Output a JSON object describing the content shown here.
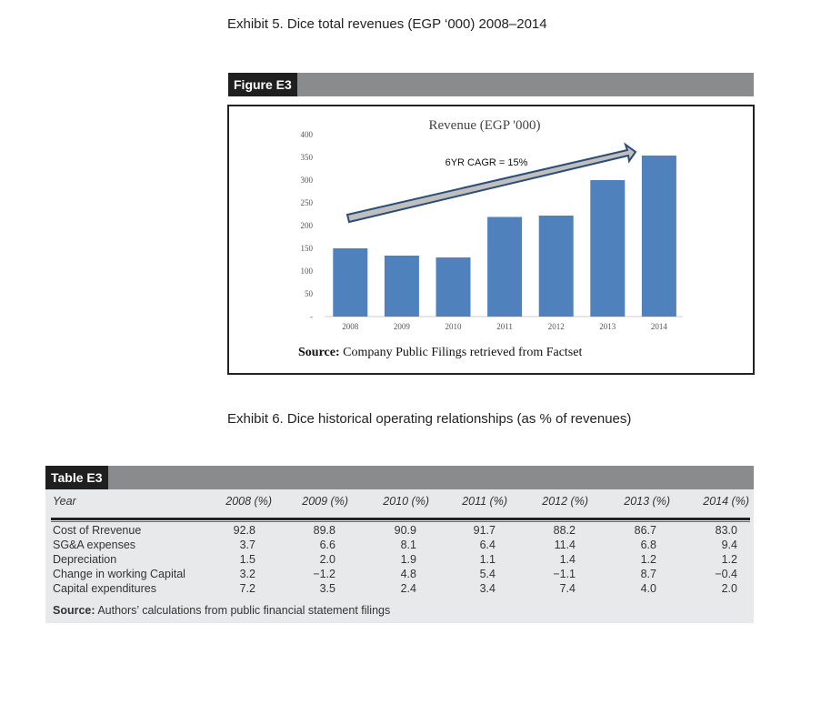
{
  "exhibit5": {
    "title": "Exhibit 5. Dice total revenues (EGP ‘000) 2008–2014",
    "figure_label": "Figure E3",
    "source_bold": "Source:",
    "source_text": " Company Public Filings retrieved from Factset"
  },
  "chart_data": {
    "type": "bar",
    "title": "Revenue (EGP '000)",
    "categories": [
      "2008",
      "2009",
      "2010",
      "2011",
      "2012",
      "2013",
      "2014"
    ],
    "values": [
      150,
      134,
      130,
      219,
      222,
      300,
      354
    ],
    "ylim": [
      0,
      400
    ],
    "yticks": [
      "-",
      "50",
      "100",
      "150",
      "200",
      "250",
      "300",
      "350",
      "400"
    ],
    "annotation": "6YR CAGR = 15%",
    "bar_color": "#4f81bd",
    "grid": false
  },
  "exhibit6": {
    "title": "Exhibit 6. Dice historical operating relationships (as % of revenues)",
    "table_label": "Table E3",
    "headers": [
      "Year",
      "2008 (%)",
      "2009 (%)",
      "2010 (%)",
      "2011 (%)",
      "2012 (%)",
      "2013 (%)",
      "2014 (%)"
    ],
    "rows": [
      [
        "Cost of Rrevenue",
        "92.8",
        "89.8",
        "90.9",
        "91.7",
        "88.2",
        "86.7",
        "83.0"
      ],
      [
        "SG&A expenses",
        "3.7",
        "6.6",
        "8.1",
        "6.4",
        "11.4",
        "6.8",
        "9.4"
      ],
      [
        "Depreciation",
        "1.5",
        "2.0",
        "1.9",
        "1.1",
        "1.4",
        "1.2",
        "1.2"
      ],
      [
        "Change in working Capital",
        "3.2",
        "−1.2",
        "4.8",
        "5.4",
        "−1.1",
        "8.7",
        "−0.4"
      ],
      [
        "Capital expenditures",
        "7.2",
        "3.5",
        "2.4",
        "3.4",
        "7.4",
        "4.0",
        "2.0"
      ]
    ],
    "source_bold": "Source:",
    "source_text": " Authors’ calculations from public financial statement filings"
  }
}
